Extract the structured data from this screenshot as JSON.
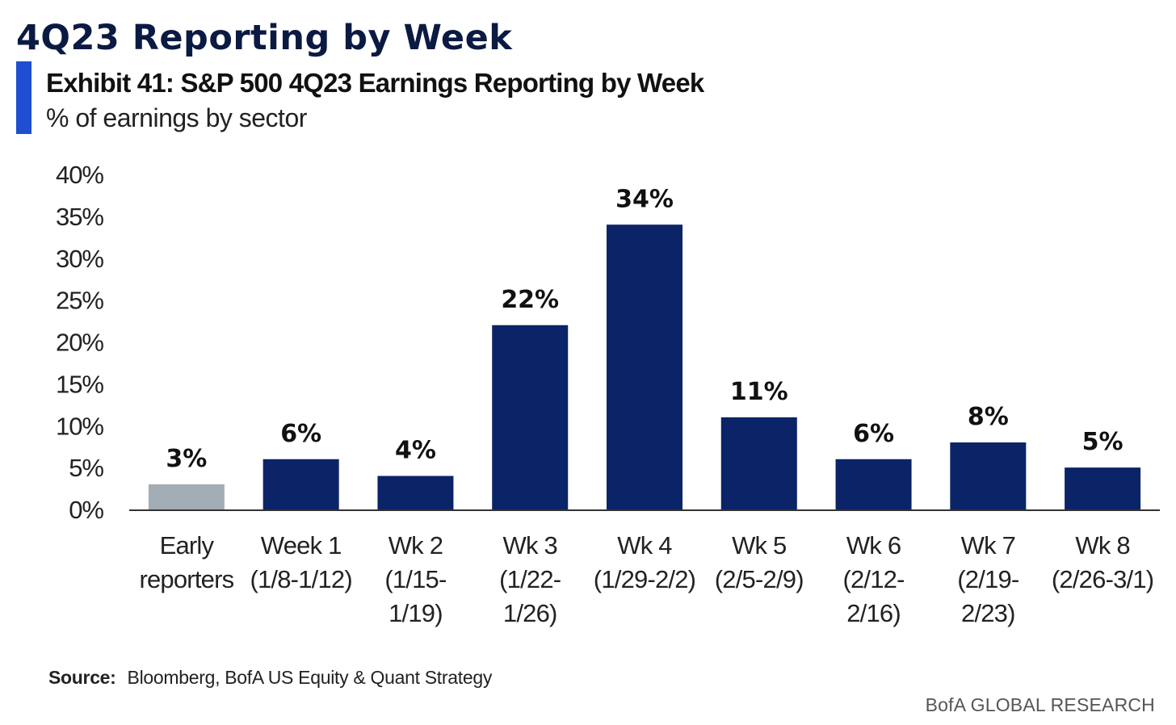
{
  "header": {
    "title": "4Q23 Reporting by Week",
    "exhibit_title": "Exhibit 41: S&P 500 4Q23 Earnings Reporting by Week",
    "exhibit_subtitle": "% of earnings by sector"
  },
  "colors": {
    "accent": "#1f4ed1",
    "bar_primary": "#0b2467",
    "bar_early": "#a3adb6",
    "axis": "#333333"
  },
  "chart_data": {
    "type": "bar",
    "title": "Exhibit 41: S&P 500 4Q23 Earnings Reporting by Week",
    "subtitle": "% of earnings by sector",
    "categories": [
      [
        "Early",
        "reporters"
      ],
      [
        "Week 1",
        "(1/8-1/12)"
      ],
      [
        "Wk 2",
        "(1/15-",
        "1/19)"
      ],
      [
        "Wk 3",
        "(1/22-",
        "1/26)"
      ],
      [
        "Wk 4",
        "(1/29-2/2)"
      ],
      [
        "Wk 5",
        "(2/5-2/9)"
      ],
      [
        "Wk 6",
        "(2/12-",
        "2/16)"
      ],
      [
        "Wk 7",
        "(2/19-",
        "2/23)"
      ],
      [
        "Wk 8",
        "(2/26-3/1)"
      ]
    ],
    "values": [
      3,
      6,
      4,
      22,
      34,
      11,
      6,
      8,
      5
    ],
    "data_labels": [
      "3%",
      "6%",
      "4%",
      "22%",
      "34%",
      "11%",
      "6%",
      "8%",
      "5%"
    ],
    "y_ticks": [
      "0%",
      "5%",
      "10%",
      "15%",
      "20%",
      "25%",
      "30%",
      "35%",
      "40%"
    ],
    "ylim": [
      0,
      40
    ],
    "unit": "%",
    "grid": false,
    "highlight_first_bar": true
  },
  "footer": {
    "source_label": "Source:",
    "source_text": "Bloomberg, BofA US Equity & Quant Strategy",
    "brand": "BofA GLOBAL RESEARCH"
  }
}
